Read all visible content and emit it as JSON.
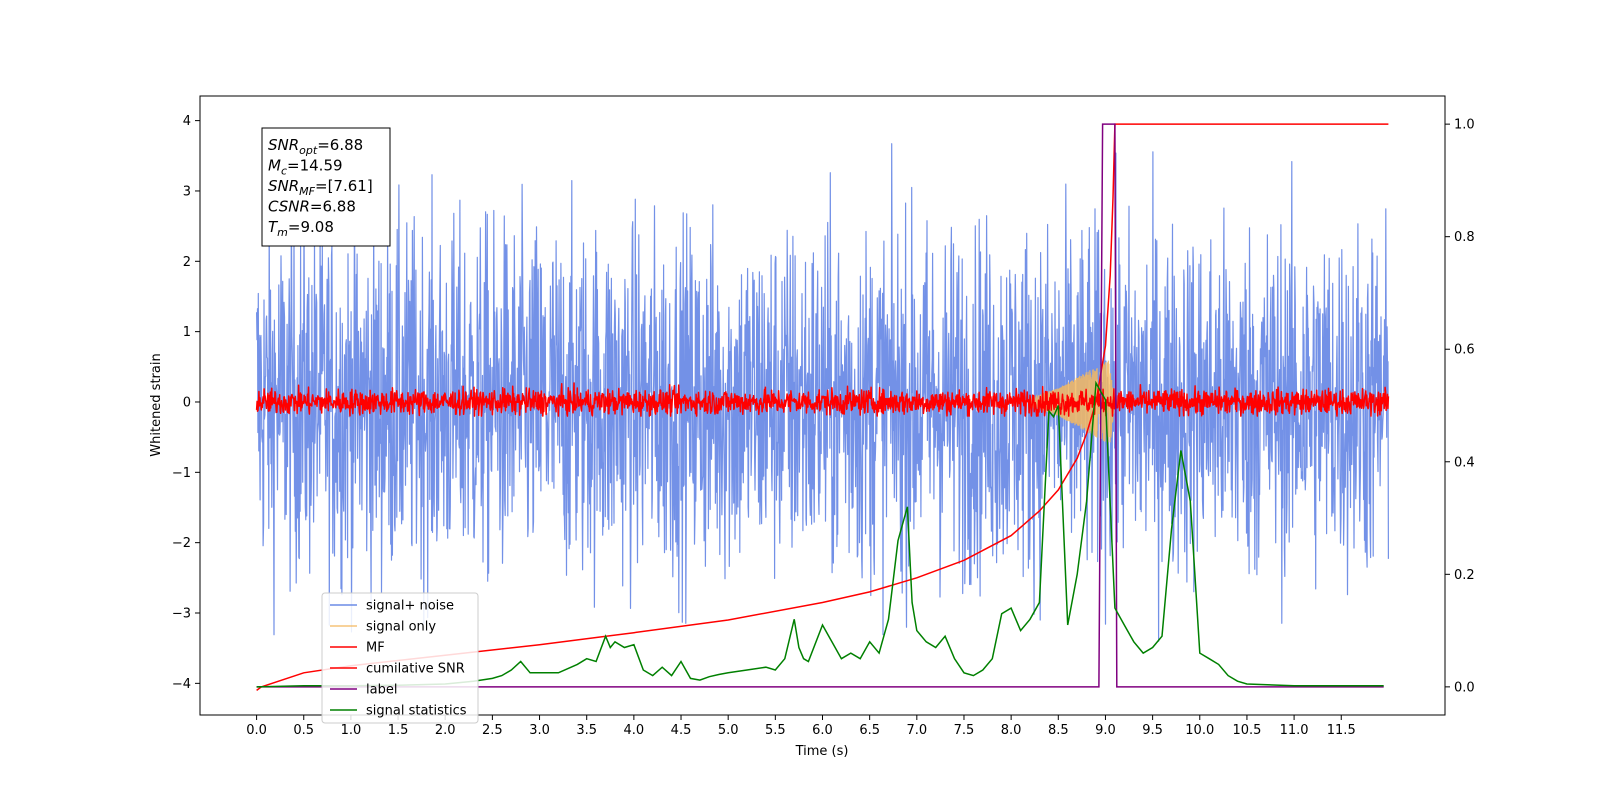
{
  "chart_data": {
    "type": "line",
    "title": "",
    "xlabel": "Time (s)",
    "ylabel": "Whitened strain",
    "ylabel_right": "",
    "xlim": [
      -0.6,
      12.6
    ],
    "ylim": [
      -4.45,
      4.35
    ],
    "ylim_right": [
      -0.05,
      1.05
    ],
    "x_ticks": [
      0.0,
      0.5,
      1.0,
      1.5,
      2.0,
      2.5,
      3.0,
      3.5,
      4.0,
      4.5,
      5.0,
      5.5,
      6.0,
      6.5,
      7.0,
      7.5,
      8.0,
      8.5,
      9.0,
      9.5,
      10.0,
      10.5,
      11.0,
      11.5
    ],
    "x_tick_labels": [
      "0.0",
      "0.5",
      "1.0",
      "1.5",
      "2.0",
      "2.5",
      "3.0",
      "3.5",
      "4.0",
      "4.5",
      "5.0",
      "5.5",
      "6.0",
      "6.5",
      "7.0",
      "7.5",
      "8.0",
      "8.5",
      "9.0",
      "9.5",
      "10.0",
      "10.5",
      "11.0",
      "11.5"
    ],
    "y_ticks": [
      -4,
      -3,
      -2,
      -1,
      0,
      1,
      2,
      3,
      4
    ],
    "y_tick_labels": [
      "−4",
      "−3",
      "−2",
      "−1",
      "0",
      "1",
      "2",
      "3",
      "4"
    ],
    "y_ticks_right": [
      0.0,
      0.2,
      0.4,
      0.6,
      0.8,
      1.0
    ],
    "y_tick_labels_right": [
      "0.0",
      "0.2",
      "0.4",
      "0.6",
      "0.8",
      "1.0"
    ],
    "grid": false,
    "legend_position": "bottom-left",
    "annotation": {
      "lines": [
        {
          "main": "SNR",
          "sub": "opt",
          "rest": "=6.88"
        },
        {
          "main": "M",
          "sub": "c",
          "rest": "=14.59"
        },
        {
          "main": "SNR",
          "sub": "MF",
          "rest": "=[7.61]"
        },
        {
          "main": "CSNR",
          "sub": "",
          "rest": "=6.88"
        },
        {
          "main": "T",
          "sub": "m",
          "rest": "=9.08"
        }
      ]
    },
    "series": [
      {
        "name": "signal+ noise",
        "axis": "left",
        "color": "#6b8be6",
        "kind": "noise_band",
        "x_range": [
          0.0,
          12.0
        ],
        "approx_range": [
          -4.1,
          3.95
        ]
      },
      {
        "name": "signal only",
        "axis": "left",
        "color": "#f5b860",
        "kind": "chirp",
        "x": [
          8.2,
          8.5,
          8.7,
          8.9,
          9.05,
          9.1
        ],
        "amplitude": [
          0.05,
          0.2,
          0.35,
          0.5,
          0.6,
          0.0
        ]
      },
      {
        "name": "MF",
        "axis": "left",
        "color": "#ff0000",
        "kind": "noise_band",
        "x_range": [
          0.0,
          12.0
        ],
        "approx_range": [
          -0.2,
          0.3
        ]
      },
      {
        "name": "cumilative SNR",
        "axis": "left",
        "color": "#ff0000",
        "kind": "curve",
        "x": [
          0.0,
          0.05,
          0.5,
          1.0,
          2.0,
          3.0,
          4.0,
          5.0,
          6.0,
          6.5,
          7.0,
          7.5,
          8.0,
          8.3,
          8.5,
          8.7,
          8.8,
          8.9,
          9.0,
          9.05,
          9.08,
          9.1,
          12.0
        ],
        "y": [
          -4.1,
          -4.05,
          -3.85,
          -3.75,
          -3.6,
          -3.45,
          -3.28,
          -3.1,
          -2.85,
          -2.7,
          -2.5,
          -2.25,
          -1.9,
          -1.55,
          -1.25,
          -0.8,
          -0.45,
          0.0,
          0.8,
          1.8,
          2.9,
          3.95,
          3.95
        ]
      },
      {
        "name": "label",
        "axis": "right",
        "color": "#800080",
        "kind": "step",
        "x": [
          0.0,
          8.93,
          8.97,
          9.1,
          9.12,
          11.95
        ],
        "y": [
          0.0,
          0.0,
          1.0,
          1.0,
          0.0,
          0.0
        ]
      },
      {
        "name": "signal statistics",
        "axis": "right",
        "color": "#008000",
        "kind": "curve",
        "x": [
          0.0,
          0.5,
          1.0,
          1.5,
          2.0,
          2.3,
          2.5,
          2.6,
          2.7,
          2.8,
          2.9,
          3.0,
          3.2,
          3.4,
          3.5,
          3.6,
          3.7,
          3.75,
          3.8,
          3.9,
          4.0,
          4.1,
          4.2,
          4.3,
          4.4,
          4.5,
          4.6,
          4.7,
          4.8,
          4.9,
          5.0,
          5.2,
          5.4,
          5.5,
          5.6,
          5.7,
          5.75,
          5.8,
          5.85,
          6.0,
          6.1,
          6.2,
          6.3,
          6.4,
          6.5,
          6.6,
          6.7,
          6.8,
          6.9,
          6.95,
          7.0,
          7.1,
          7.2,
          7.3,
          7.4,
          7.5,
          7.6,
          7.7,
          7.8,
          7.9,
          8.0,
          8.1,
          8.2,
          8.3,
          8.4,
          8.45,
          8.5,
          8.6,
          8.7,
          8.8,
          8.9,
          9.0,
          9.1,
          9.2,
          9.3,
          9.4,
          9.5,
          9.6,
          9.7,
          9.8,
          9.9,
          10.0,
          10.1,
          10.2,
          10.3,
          10.4,
          10.5,
          11.0,
          11.5,
          11.95
        ],
        "y": [
          0.0,
          0.002,
          0.002,
          0.003,
          0.005,
          0.01,
          0.015,
          0.02,
          0.03,
          0.045,
          0.025,
          0.025,
          0.025,
          0.04,
          0.05,
          0.045,
          0.09,
          0.07,
          0.08,
          0.07,
          0.075,
          0.03,
          0.02,
          0.035,
          0.02,
          0.045,
          0.015,
          0.012,
          0.018,
          0.022,
          0.025,
          0.03,
          0.035,
          0.03,
          0.05,
          0.12,
          0.07,
          0.05,
          0.045,
          0.11,
          0.08,
          0.05,
          0.06,
          0.05,
          0.08,
          0.06,
          0.12,
          0.26,
          0.32,
          0.15,
          0.1,
          0.08,
          0.07,
          0.09,
          0.05,
          0.025,
          0.02,
          0.03,
          0.05,
          0.13,
          0.14,
          0.1,
          0.12,
          0.15,
          0.49,
          0.48,
          0.5,
          0.11,
          0.2,
          0.33,
          0.54,
          0.51,
          0.14,
          0.11,
          0.08,
          0.06,
          0.07,
          0.09,
          0.28,
          0.42,
          0.33,
          0.06,
          0.05,
          0.04,
          0.02,
          0.01,
          0.005,
          0.002,
          0.002,
          0.002
        ]
      }
    ]
  }
}
